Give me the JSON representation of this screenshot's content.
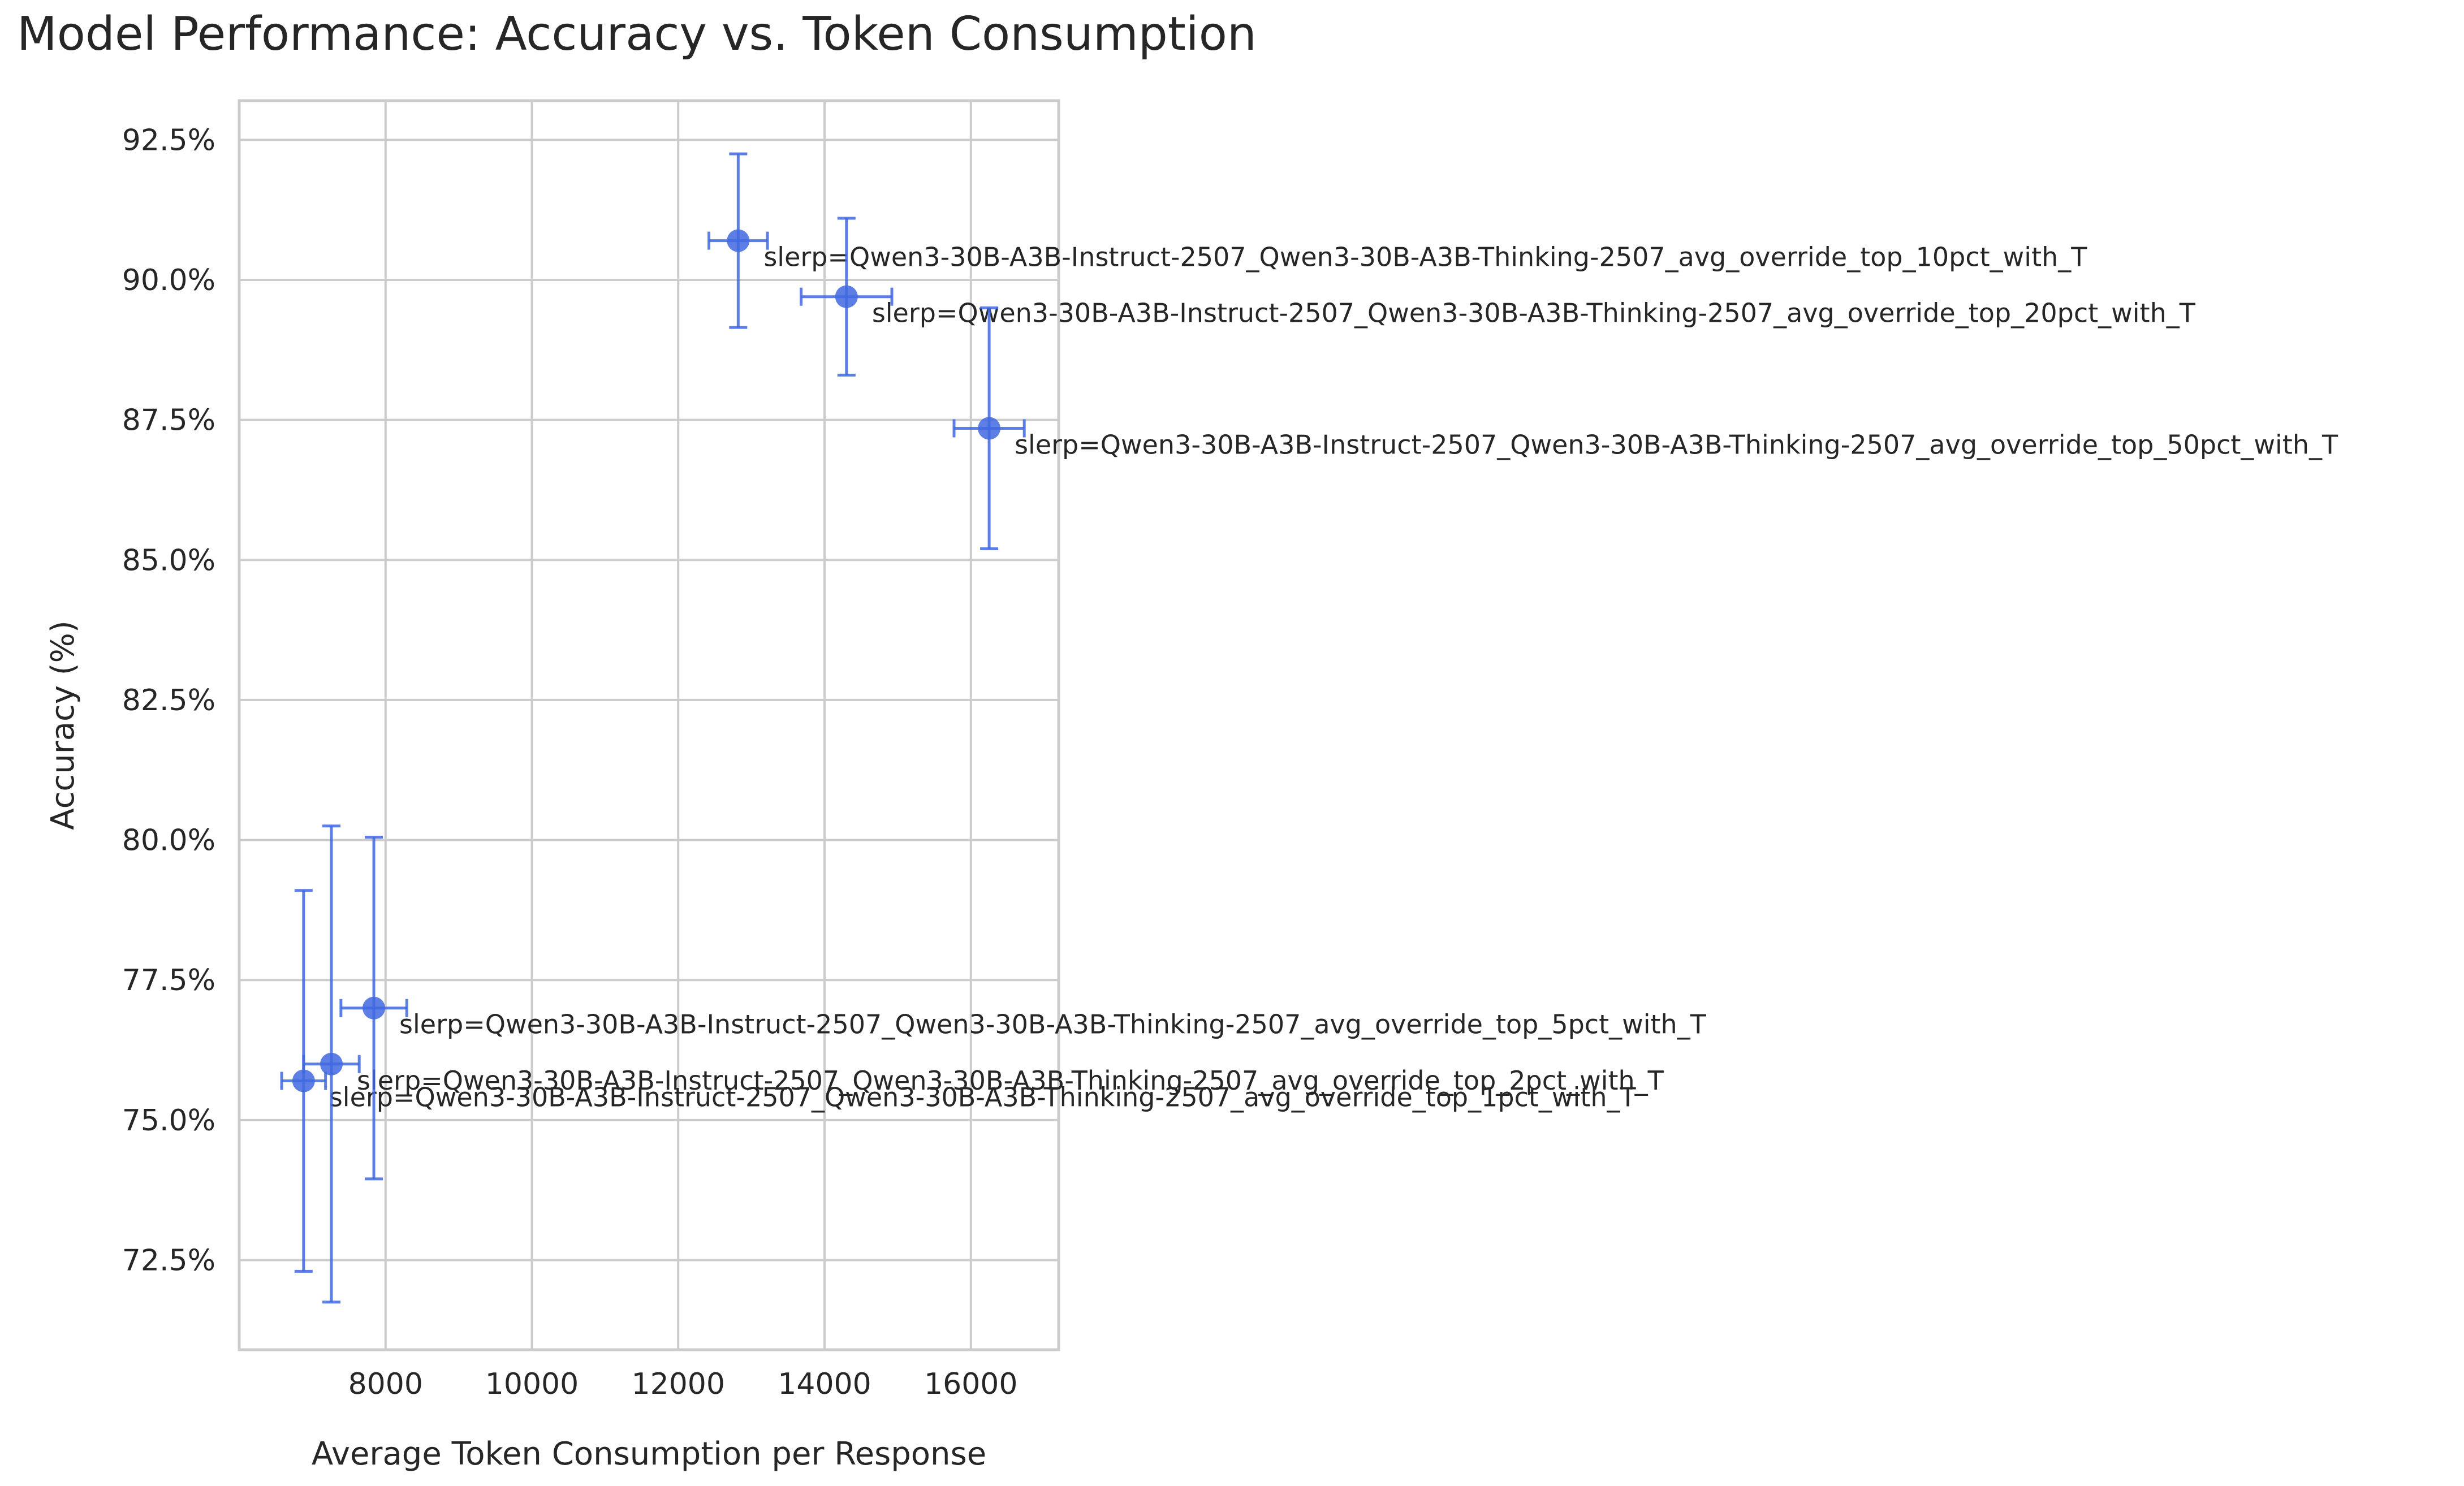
{
  "chart_data": {
    "type": "scatter",
    "title": "Model Performance: Accuracy vs. Token Consumption",
    "xlabel": "Average Token Consumption per Response",
    "ylabel": "Accuracy (%)",
    "xlim": [
      6000,
      17200
    ],
    "ylim": [
      70.9,
      93.2
    ],
    "x_ticks": [
      8000,
      10000,
      12000,
      14000,
      16000
    ],
    "x_tick_labels": [
      "8000",
      "10000",
      "12000",
      "14000",
      "16000"
    ],
    "y_ticks": [
      72.5,
      75.0,
      77.5,
      80.0,
      82.5,
      85.0,
      87.5,
      90.0,
      92.5
    ],
    "y_tick_labels": [
      "72.5%",
      "75.0%",
      "77.5%",
      "80.0%",
      "82.5%",
      "85.0%",
      "87.5%",
      "90.0%",
      "92.5%"
    ],
    "grid": true,
    "color": "#4169e1",
    "points": [
      {
        "label": "slerp=Qwen3-30B-A3B-Instruct-2507_Qwen3-30B-A3B-Thinking-2507_avg_override_top_1pct_with_T",
        "x": 6880,
        "y": 75.7,
        "x_err": 300,
        "y_err": 3.4
      },
      {
        "label": "slerp=Qwen3-30B-A3B-Instruct-2507_Qwen3-30B-A3B-Thinking-2507_avg_override_top_2pct_with_T",
        "x": 7260,
        "y": 76.0,
        "x_err": 380,
        "y_err": 4.25
      },
      {
        "label": "slerp=Qwen3-30B-A3B-Instruct-2507_Qwen3-30B-A3B-Thinking-2507_avg_override_top_5pct_with_T",
        "x": 7840,
        "y": 77.0,
        "x_err": 450,
        "y_err": 3.05
      },
      {
        "label": "slerp=Qwen3-30B-A3B-Instruct-2507_Qwen3-30B-A3B-Thinking-2507_avg_override_top_10pct_with_T",
        "x": 12820,
        "y": 90.7,
        "x_err": 400,
        "y_err": 1.55
      },
      {
        "label": "slerp=Qwen3-30B-A3B-Instruct-2507_Qwen3-30B-A3B-Thinking-2507_avg_override_top_20pct_with_T",
        "x": 14300,
        "y": 89.7,
        "x_err": 620,
        "y_err": 1.4
      },
      {
        "label": "slerp=Qwen3-30B-A3B-Instruct-2507_Qwen3-30B-A3B-Thinking-2507_avg_override_top_50pct_with_T",
        "x": 16250,
        "y": 87.35,
        "x_err": 480,
        "y_err": 2.15
      }
    ]
  }
}
